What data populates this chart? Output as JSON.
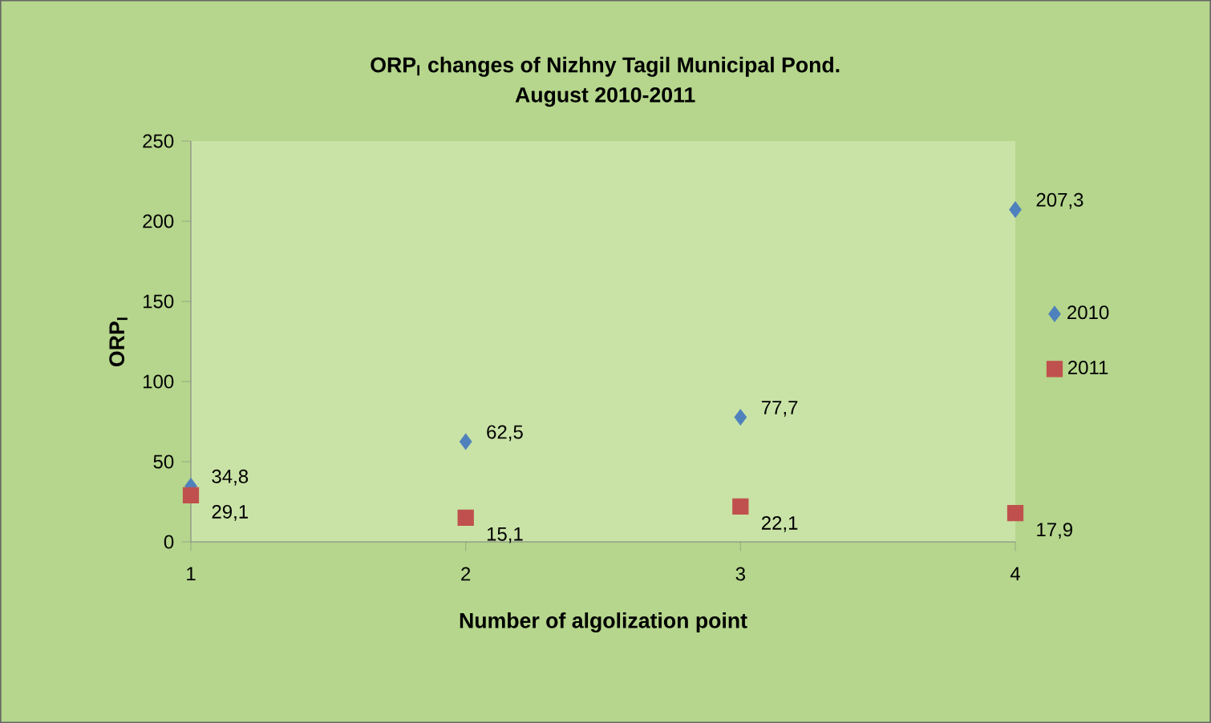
{
  "chart_data": {
    "type": "scatter",
    "title": "ORP$_{I}$ changes of Nizhny Tagil Municipal Pond.",
    "subtitle": "August 2010-2011",
    "xlabel": "Number of algolization  point",
    "ylabel": "ORP$_{I}$",
    "x": [
      1,
      2,
      3,
      4
    ],
    "xlim": [
      1,
      4
    ],
    "xticks": [
      1,
      2,
      3,
      4
    ],
    "ylim": [
      0,
      250
    ],
    "yticks": [
      0,
      50,
      100,
      150,
      200,
      250
    ],
    "legend": "right",
    "series": [
      {
        "name": "2010",
        "color": "#4f81bd",
        "marker": "diamond",
        "values": [
          34.8,
          62.5,
          77.7,
          207.3
        ],
        "value_labels": [
          "34,8",
          "62,5",
          "77,7",
          "207,3"
        ]
      },
      {
        "name": "2011",
        "color": "#c0504d",
        "marker": "square",
        "values": [
          29.1,
          15.1,
          22.1,
          17.9
        ],
        "value_labels": [
          "29,1",
          "15,1",
          "22,1",
          "17,9"
        ]
      }
    ]
  }
}
